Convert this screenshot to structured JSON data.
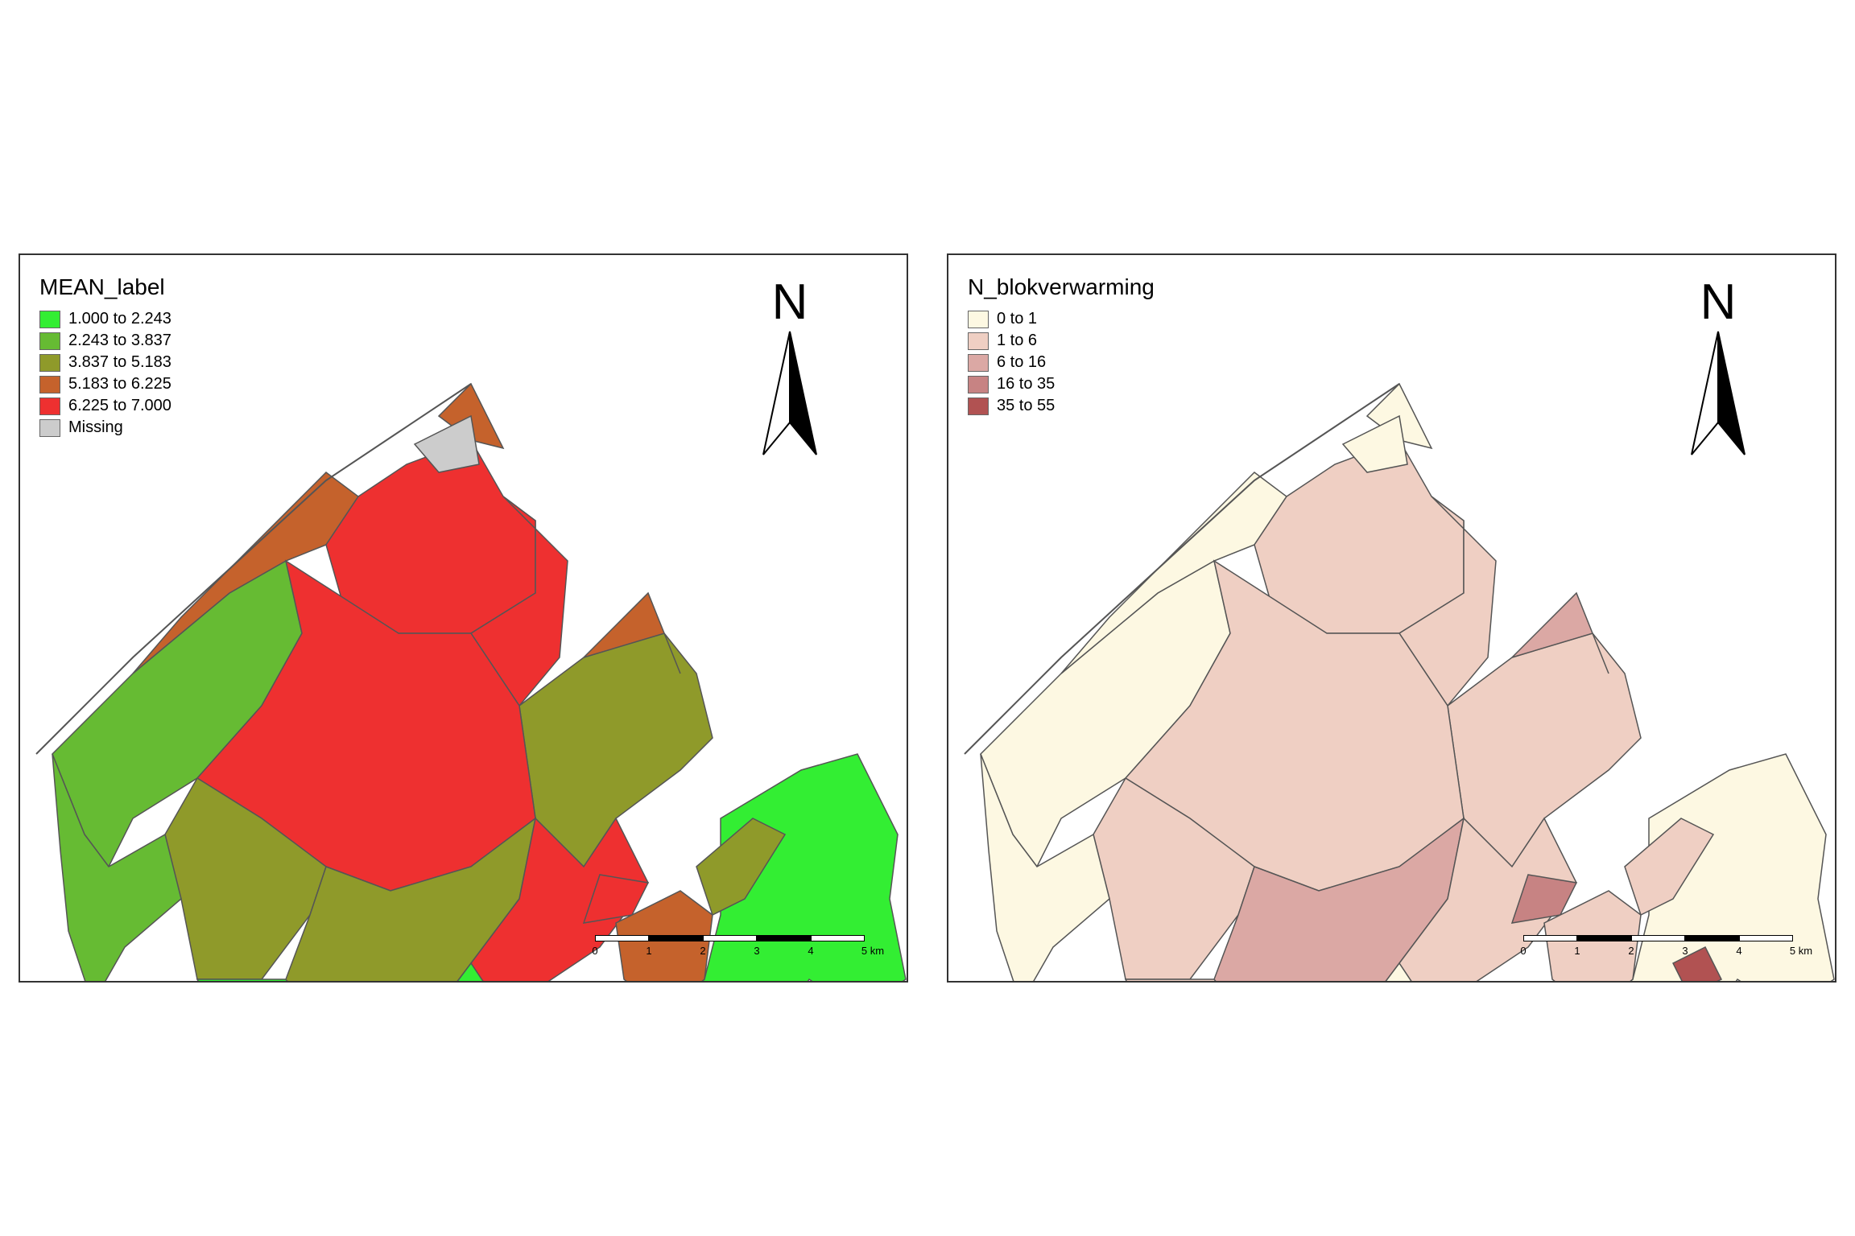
{
  "maps": [
    {
      "id": "left",
      "legend_title": "MEAN_label",
      "legend": [
        {
          "label": "1.000 to 2.243",
          "color": "#33ee33"
        },
        {
          "label": "2.243 to 3.837",
          "color": "#66bb33"
        },
        {
          "label": "3.837 to 5.183",
          "color": "#8f9a2a"
        },
        {
          "label": "5.183 to 6.225",
          "color": "#c5622c"
        },
        {
          "label": "6.225 to 7.000",
          "color": "#ee3030"
        },
        {
          "label": "Missing",
          "color": "#cccccc"
        }
      ]
    },
    {
      "id": "right",
      "legend_title": "N_blokverwarming",
      "legend": [
        {
          "label": "0 to 1",
          "color": "#fdf8e2"
        },
        {
          "label": "1 to 6",
          "color": "#efcfc3"
        },
        {
          "label": "6 to 16",
          "color": "#dba8a4"
        },
        {
          "label": "16 to 35",
          "color": "#c78383"
        },
        {
          "label": "35 to 55",
          "color": "#b15252"
        }
      ]
    }
  ],
  "north_label": "N",
  "scalebar": {
    "ticks": [
      "0",
      "1",
      "2",
      "3",
      "4",
      "5 km"
    ]
  }
}
